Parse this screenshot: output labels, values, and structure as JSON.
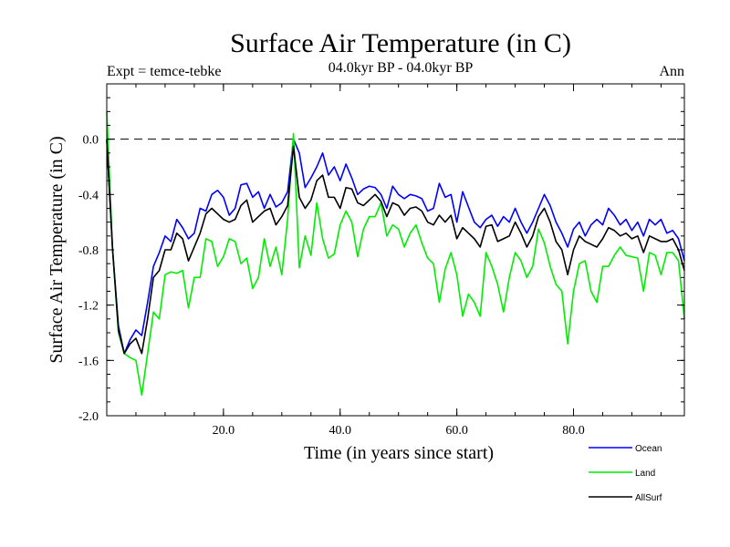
{
  "page": {
    "title": "Surface Air Temperature (in C)",
    "subtitle": "04.0kyr BP - 04.0kyr BP",
    "left_label": "Expt = temce-tebke",
    "right_label": "Ann"
  },
  "chart_data": {
    "type": "line",
    "title": "Surface Air Temperature (in C)",
    "subtitle": "04.0kyr BP - 04.0kyr BP",
    "xlabel": "Time (in years since start)",
    "ylabel": "Surface Air Temperature (in C)",
    "xlim": [
      0,
      99
    ],
    "ylim": [
      -2.0,
      0.4
    ],
    "x_ticks": [
      20,
      40,
      60,
      80
    ],
    "x_tick_labels": [
      "20.0",
      "40.0",
      "60.0",
      "80.0"
    ],
    "y_ticks": [
      -2.0,
      -1.6,
      -1.2,
      -0.8,
      -0.4,
      0.0
    ],
    "y_tick_labels": [
      "-2.0",
      "-1.6",
      "-1.2",
      "-0.8",
      "-0.4",
      "0.0"
    ],
    "reference_line": 0.0,
    "colors": {
      "Ocean": "#0000ff",
      "Land": "#00ee00",
      "AllSurf": "#000000",
      "reference": "#000000"
    },
    "series": [
      {
        "name": "Ocean",
        "x": [
          0,
          1,
          2,
          3,
          4,
          5,
          6,
          7,
          8,
          9,
          10,
          11,
          12,
          13,
          14,
          15,
          16,
          17,
          18,
          19,
          20,
          21,
          22,
          23,
          24,
          25,
          26,
          27,
          28,
          29,
          30,
          31,
          32,
          33,
          34,
          35,
          36,
          37,
          38,
          39,
          40,
          41,
          42,
          43,
          44,
          45,
          46,
          47,
          48,
          49,
          50,
          51,
          52,
          53,
          54,
          55,
          56,
          57,
          58,
          59,
          60,
          61,
          62,
          63,
          64,
          65,
          66,
          67,
          68,
          69,
          70,
          71,
          72,
          73,
          74,
          75,
          76,
          77,
          78,
          79,
          80,
          81,
          82,
          83,
          84,
          85,
          86,
          87,
          88,
          89,
          90,
          91,
          92,
          93,
          94,
          95,
          96,
          97,
          98,
          99
        ],
        "values": [
          -0.01,
          -0.8,
          -1.35,
          -1.55,
          -1.45,
          -1.38,
          -1.42,
          -1.18,
          -0.92,
          -0.82,
          -0.7,
          -0.74,
          -0.58,
          -0.64,
          -0.72,
          -0.68,
          -0.5,
          -0.52,
          -0.4,
          -0.37,
          -0.42,
          -0.55,
          -0.5,
          -0.33,
          -0.32,
          -0.42,
          -0.38,
          -0.5,
          -0.4,
          -0.49,
          -0.46,
          -0.38,
          0.0,
          -0.1,
          -0.35,
          -0.28,
          -0.2,
          -0.1,
          -0.26,
          -0.2,
          -0.3,
          -0.18,
          -0.28,
          -0.4,
          -0.36,
          -0.34,
          -0.35,
          -0.4,
          -0.5,
          -0.34,
          -0.4,
          -0.43,
          -0.4,
          -0.41,
          -0.43,
          -0.52,
          -0.5,
          -0.32,
          -0.42,
          -0.4,
          -0.6,
          -0.38,
          -0.49,
          -0.6,
          -0.64,
          -0.58,
          -0.55,
          -0.63,
          -0.56,
          -0.6,
          -0.5,
          -0.6,
          -0.68,
          -0.6,
          -0.5,
          -0.4,
          -0.48,
          -0.6,
          -0.68,
          -0.78,
          -0.65,
          -0.6,
          -0.7,
          -0.62,
          -0.58,
          -0.62,
          -0.5,
          -0.55,
          -0.62,
          -0.58,
          -0.66,
          -0.6,
          -0.7,
          -0.58,
          -0.62,
          -0.58,
          -0.68,
          -0.66,
          -0.72,
          -0.88
        ]
      },
      {
        "name": "Land",
        "x": [
          0,
          1,
          2,
          3,
          4,
          5,
          6,
          7,
          8,
          9,
          10,
          11,
          12,
          13,
          14,
          15,
          16,
          17,
          18,
          19,
          20,
          21,
          22,
          23,
          24,
          25,
          26,
          27,
          28,
          29,
          30,
          31,
          32,
          33,
          34,
          35,
          36,
          37,
          38,
          39,
          40,
          41,
          42,
          43,
          44,
          45,
          46,
          47,
          48,
          49,
          50,
          51,
          52,
          53,
          54,
          55,
          56,
          57,
          58,
          59,
          60,
          61,
          62,
          63,
          64,
          65,
          66,
          67,
          68,
          69,
          70,
          71,
          72,
          73,
          74,
          75,
          76,
          77,
          78,
          79,
          80,
          81,
          82,
          83,
          84,
          85,
          86,
          87,
          88,
          89,
          90,
          91,
          92,
          93,
          94,
          95,
          96,
          97,
          98,
          99
        ],
        "values": [
          0.2,
          -0.8,
          -1.4,
          -1.55,
          -1.58,
          -1.6,
          -1.85,
          -1.55,
          -1.25,
          -1.3,
          -0.98,
          -0.96,
          -0.97,
          -0.95,
          -1.22,
          -1.0,
          -1.0,
          -0.72,
          -0.74,
          -0.92,
          -0.85,
          -0.72,
          -0.74,
          -0.9,
          -0.86,
          -1.08,
          -1.0,
          -0.72,
          -0.92,
          -0.78,
          -0.98,
          -0.58,
          0.04,
          -0.93,
          -0.7,
          -0.84,
          -0.46,
          -0.72,
          -0.86,
          -0.83,
          -0.62,
          -0.52,
          -0.6,
          -0.85,
          -0.65,
          -0.56,
          -0.56,
          -0.46,
          -0.7,
          -0.62,
          -0.65,
          -0.78,
          -0.68,
          -0.62,
          -0.75,
          -0.86,
          -0.9,
          -1.18,
          -0.94,
          -0.82,
          -0.98,
          -1.28,
          -1.12,
          -1.18,
          -1.28,
          -0.82,
          -0.92,
          -1.05,
          -1.25,
          -1.0,
          -0.82,
          -0.88,
          -1.0,
          -0.92,
          -0.65,
          -0.75,
          -0.92,
          -1.05,
          -1.1,
          -1.48,
          -1.1,
          -0.9,
          -0.88,
          -1.1,
          -1.18,
          -0.92,
          -0.92,
          -0.84,
          -0.78,
          -0.84,
          -0.85,
          -0.86,
          -1.1,
          -0.82,
          -0.84,
          -0.98,
          -0.82,
          -0.82,
          -0.88,
          -1.3
        ]
      },
      {
        "name": "AllSurf",
        "x": [
          0,
          1,
          2,
          3,
          4,
          5,
          6,
          7,
          8,
          9,
          10,
          11,
          12,
          13,
          14,
          15,
          16,
          17,
          18,
          19,
          20,
          21,
          22,
          23,
          24,
          25,
          26,
          27,
          28,
          29,
          30,
          31,
          32,
          33,
          34,
          35,
          36,
          37,
          38,
          39,
          40,
          41,
          42,
          43,
          44,
          45,
          46,
          47,
          48,
          49,
          50,
          51,
          52,
          53,
          54,
          55,
          56,
          57,
          58,
          59,
          60,
          61,
          62,
          63,
          64,
          65,
          66,
          67,
          68,
          69,
          70,
          71,
          72,
          73,
          74,
          75,
          76,
          77,
          78,
          79,
          80,
          81,
          82,
          83,
          84,
          85,
          86,
          87,
          88,
          89,
          90,
          91,
          92,
          93,
          94,
          95,
          96,
          97,
          98,
          99
        ],
        "values": [
          0.0,
          -0.8,
          -1.38,
          -1.55,
          -1.48,
          -1.44,
          -1.55,
          -1.3,
          -1.0,
          -0.95,
          -0.8,
          -0.8,
          -0.68,
          -0.72,
          -0.88,
          -0.78,
          -0.68,
          -0.54,
          -0.5,
          -0.54,
          -0.58,
          -0.6,
          -0.58,
          -0.48,
          -0.44,
          -0.6,
          -0.56,
          -0.52,
          -0.5,
          -0.62,
          -0.56,
          -0.48,
          -0.05,
          -0.42,
          -0.5,
          -0.44,
          -0.3,
          -0.26,
          -0.42,
          -0.42,
          -0.5,
          -0.35,
          -0.36,
          -0.46,
          -0.48,
          -0.44,
          -0.4,
          -0.45,
          -0.56,
          -0.46,
          -0.48,
          -0.55,
          -0.5,
          -0.49,
          -0.52,
          -0.6,
          -0.62,
          -0.55,
          -0.6,
          -0.55,
          -0.72,
          -0.64,
          -0.68,
          -0.72,
          -0.78,
          -0.63,
          -0.62,
          -0.74,
          -0.72,
          -0.7,
          -0.6,
          -0.68,
          -0.78,
          -0.7,
          -0.56,
          -0.5,
          -0.6,
          -0.74,
          -0.8,
          -0.98,
          -0.8,
          -0.7,
          -0.74,
          -0.76,
          -0.78,
          -0.72,
          -0.64,
          -0.66,
          -0.7,
          -0.68,
          -0.72,
          -0.7,
          -0.82,
          -0.7,
          -0.72,
          -0.74,
          -0.74,
          -0.72,
          -0.8,
          -0.95
        ]
      }
    ],
    "legend": {
      "position": "bottom-right",
      "entries": [
        "Ocean",
        "Land",
        "AllSurf"
      ]
    }
  }
}
